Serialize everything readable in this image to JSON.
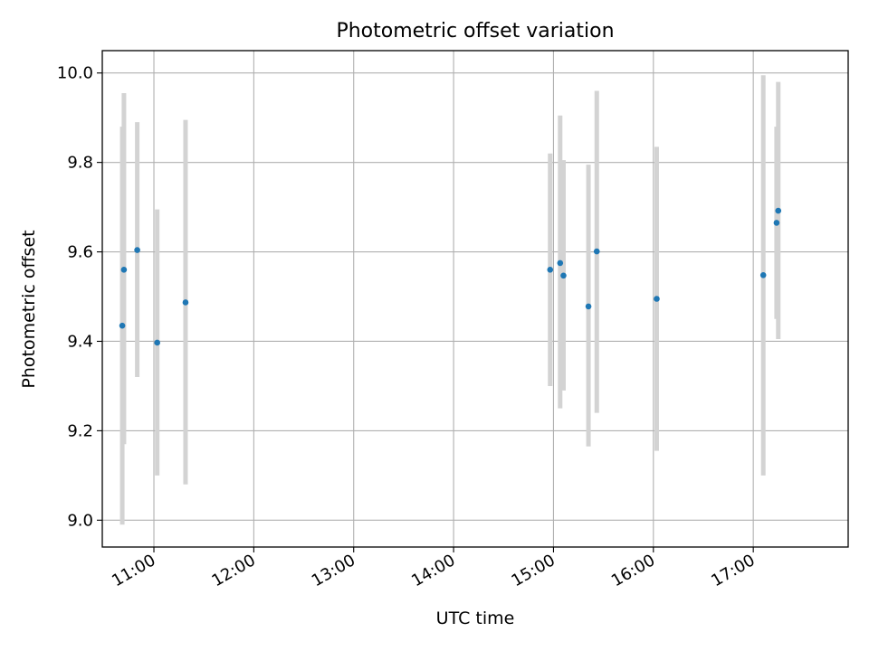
{
  "chart_data": {
    "type": "scatter",
    "title": "Photometric offset variation",
    "xlabel": "UTC time",
    "ylabel": "Photometric offset",
    "x_tick_labels": [
      "11:00",
      "12:00",
      "13:00",
      "14:00",
      "15:00",
      "16:00",
      "17:00"
    ],
    "y_tick_labels": [
      "9.0",
      "9.2",
      "9.4",
      "9.6",
      "9.8",
      "10.0"
    ],
    "xlim": [
      "10:29",
      "17:57"
    ],
    "ylim": [
      8.94,
      10.05
    ],
    "grid": true,
    "marker_color": "#1f77b4",
    "errorbar_color": "#d3d3d3",
    "points": [
      {
        "x": "10:41",
        "y": 9.435,
        "y_low": 8.99,
        "y_high": 9.88
      },
      {
        "x": "10:42",
        "y": 9.56,
        "y_low": 9.17,
        "y_high": 9.955
      },
      {
        "x": "10:50",
        "y": 9.604,
        "y_low": 9.32,
        "y_high": 9.89
      },
      {
        "x": "11:02",
        "y": 9.397,
        "y_low": 9.1,
        "y_high": 9.695
      },
      {
        "x": "11:19",
        "y": 9.487,
        "y_low": 9.08,
        "y_high": 9.895
      },
      {
        "x": "14:58",
        "y": 9.56,
        "y_low": 9.3,
        "y_high": 9.82
      },
      {
        "x": "15:04",
        "y": 9.575,
        "y_low": 9.25,
        "y_high": 9.905
      },
      {
        "x": "15:06",
        "y": 9.547,
        "y_low": 9.29,
        "y_high": 9.805
      },
      {
        "x": "15:21",
        "y": 9.478,
        "y_low": 9.165,
        "y_high": 9.795
      },
      {
        "x": "15:26",
        "y": 9.601,
        "y_low": 9.24,
        "y_high": 9.96
      },
      {
        "x": "16:02",
        "y": 9.495,
        "y_low": 9.155,
        "y_high": 9.835
      },
      {
        "x": "17:06",
        "y": 9.548,
        "y_low": 9.1,
        "y_high": 9.995
      },
      {
        "x": "17:14",
        "y": 9.665,
        "y_low": 9.45,
        "y_high": 9.88
      },
      {
        "x": "17:15",
        "y": 9.692,
        "y_low": 9.405,
        "y_high": 9.98
      }
    ]
  }
}
